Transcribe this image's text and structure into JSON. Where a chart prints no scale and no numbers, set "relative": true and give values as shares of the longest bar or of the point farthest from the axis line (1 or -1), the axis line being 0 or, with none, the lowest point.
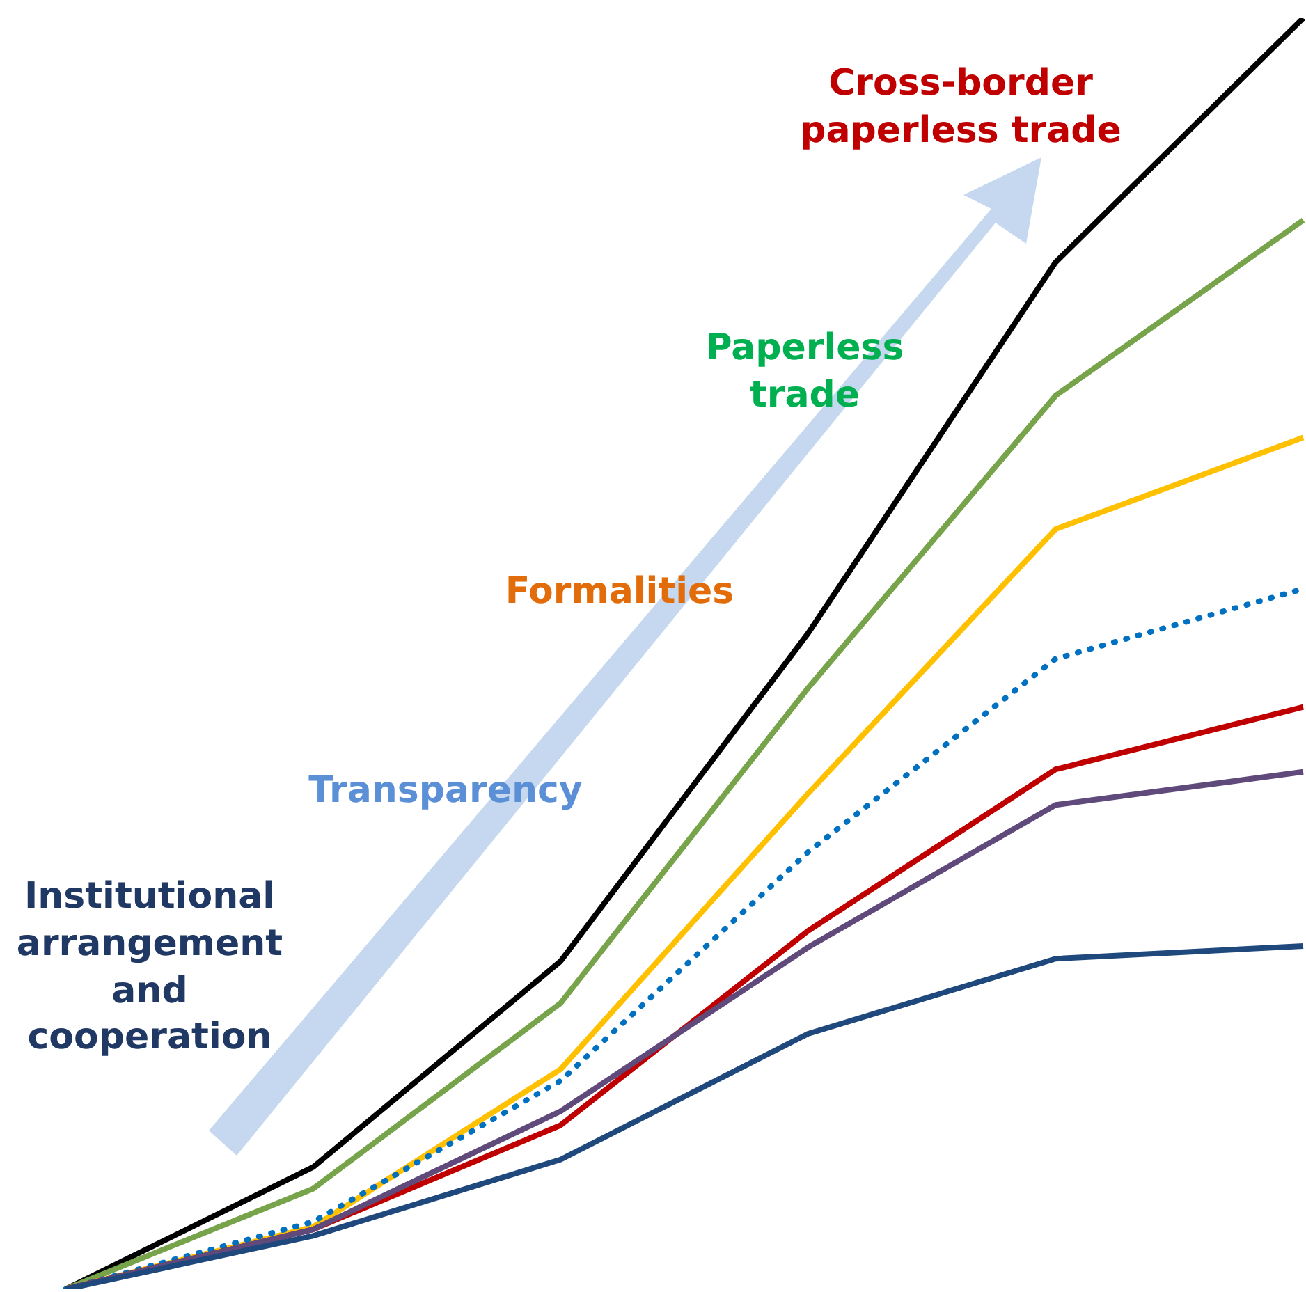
{
  "chart_data": {
    "type": "line",
    "relative": true,
    "categories": [
      null,
      null,
      null,
      null,
      null,
      null
    ],
    "series": [
      {
        "color": "#1f497d",
        "values": [
          0,
          0.042,
          0.102,
          0.201,
          0.26,
          0.27
        ]
      },
      {
        "color": "#604a7b",
        "values": [
          0,
          0.047,
          0.14,
          0.269,
          0.381,
          0.407
        ]
      },
      {
        "color": "#c00000",
        "values": [
          0,
          0.047,
          0.129,
          0.282,
          0.409,
          0.458
        ]
      },
      {
        "color": "#0070c0",
        "line_style": "dotted",
        "values": [
          0,
          0.053,
          0.164,
          0.344,
          0.496,
          0.551
        ]
      },
      {
        "color": "#ffc000",
        "values": [
          0,
          0.049,
          0.173,
          0.39,
          0.598,
          0.67
        ]
      },
      {
        "color": "#77a34b",
        "values": [
          0,
          0.079,
          0.225,
          0.473,
          0.703,
          0.841
        ]
      },
      {
        "color": "#000000",
        "values": [
          0,
          0.096,
          0.258,
          0.516,
          0.808,
          1
        ]
      }
    ],
    "annotations": [
      "Institutional arrangement and cooperation",
      "Transparency",
      "Formalities",
      "Paperless trade",
      "Cross-border paperless trade"
    ],
    "grid": false,
    "legend": false,
    "tick_labels": false,
    "marker": "none",
    "line_style": "solid"
  }
}
